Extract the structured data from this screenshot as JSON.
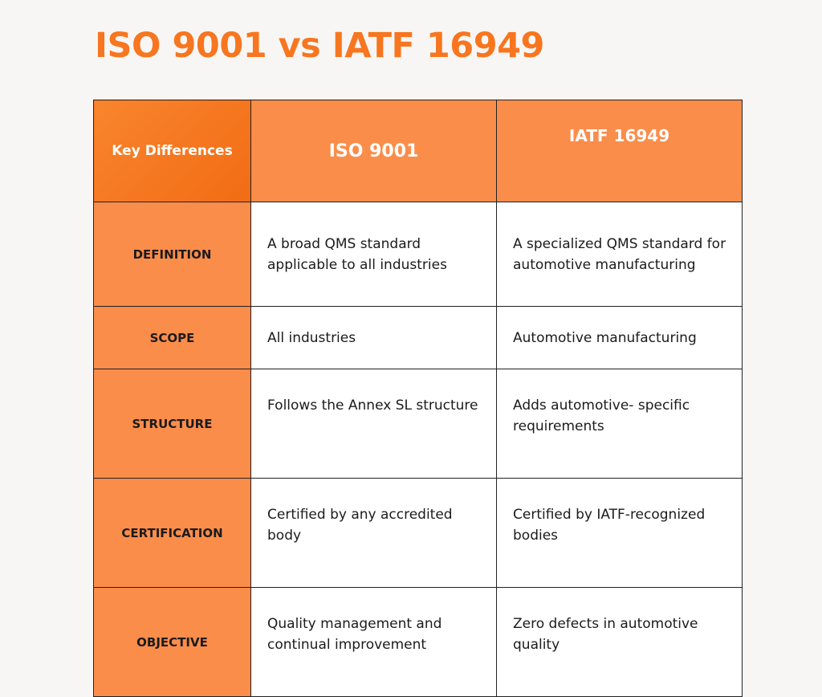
{
  "title": "ISO 9001 vs IATF 16949",
  "colors": {
    "accent": "#f7761f",
    "header_bg": "#fb8d4b",
    "corner_bg": "#f26c14"
  },
  "table": {
    "headers": [
      "Key Differences",
      "ISO 9001",
      "IATF 16949"
    ],
    "rows": [
      {
        "label": "DEFINITION",
        "iso": "A broad QMS standard applicable to all industries",
        "iatf": "A specialized QMS standard for automotive manufacturing"
      },
      {
        "label": "SCOPE",
        "iso": "All industries",
        "iatf": "Automotive manufacturing"
      },
      {
        "label": "STRUCTURE",
        "iso": "Follows the Annex SL structure",
        "iatf": "Adds automotive- specific requirements"
      },
      {
        "label": "CERTIFICATION",
        "iso": "Certified by any accredited body",
        "iatf": "Certified by IATF-recognized bodies"
      },
      {
        "label": "OBJECTIVE",
        "iso": "Quality management and continual improvement",
        "iatf": "Zero defects in automotive quality"
      }
    ]
  }
}
